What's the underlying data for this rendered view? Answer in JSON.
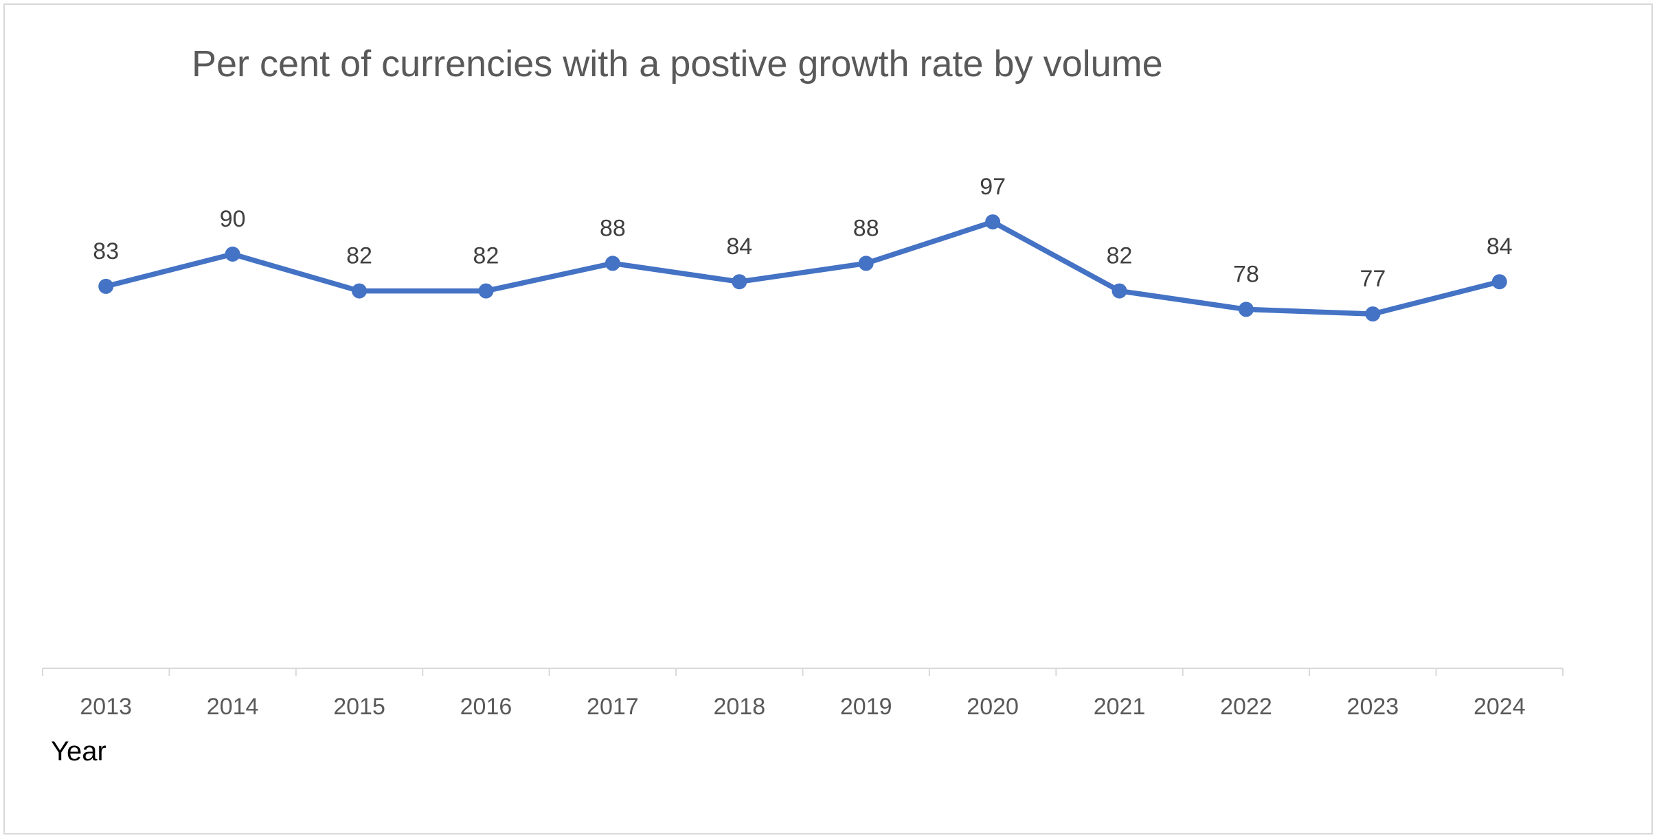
{
  "chart_data": {
    "type": "line",
    "title": "Per cent of currencies with a postive growth rate by volume",
    "xlabel": "Year",
    "ylabel": "",
    "categories": [
      "2013",
      "2014",
      "2015",
      "2016",
      "2017",
      "2018",
      "2019",
      "2020",
      "2021",
      "2022",
      "2023",
      "2024"
    ],
    "series": [
      {
        "values": [
          83,
          90,
          82,
          82,
          88,
          84,
          88,
          97,
          82,
          78,
          77,
          84
        ],
        "color": "#4472C4"
      }
    ],
    "data_labels": true,
    "ylim": [
      0,
      100
    ],
    "y_axis_visible": false,
    "grid": false,
    "legend": "none"
  }
}
